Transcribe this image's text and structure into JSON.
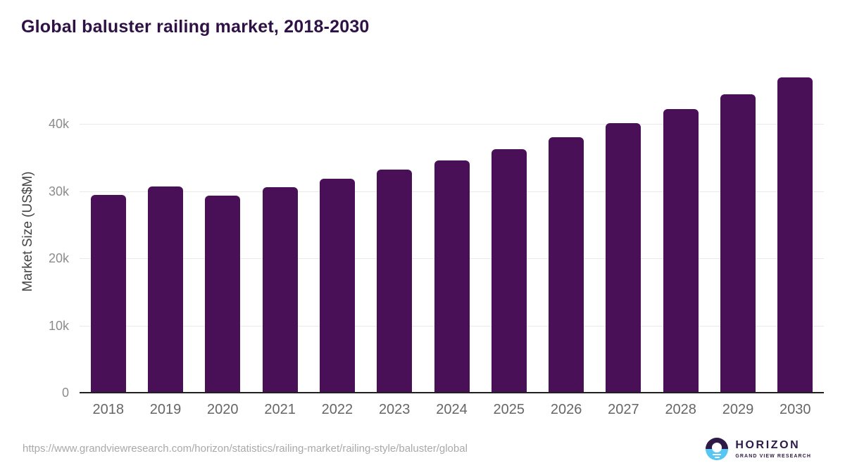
{
  "title": "Global baluster railing market, 2018-2030",
  "chart_data": {
    "type": "bar",
    "title": "Global baluster railing market, 2018-2030",
    "categories": [
      "2018",
      "2019",
      "2020",
      "2021",
      "2022",
      "2023",
      "2024",
      "2025",
      "2026",
      "2027",
      "2028",
      "2029",
      "2030"
    ],
    "values": [
      29500,
      30700,
      29300,
      30600,
      31850,
      33250,
      34600,
      36300,
      38000,
      40100,
      42200,
      44400,
      47000
    ],
    "xlabel": "",
    "ylabel": "Market Size (US$M)",
    "ylim": [
      0,
      48000
    ],
    "yticks": [
      0,
      10000,
      20000,
      30000,
      40000
    ],
    "ytick_labels": [
      "0",
      "10k",
      "20k",
      "30k",
      "40k"
    ],
    "grid": true,
    "legend": false,
    "bar_color": "#4a1057"
  },
  "footer": {
    "source_url": "https://www.grandviewresearch.com/horizon/statistics/railing-market/railing-style/baluster/global",
    "logo": {
      "name": "HORIZON",
      "tagline": "GRAND VIEW RESEARCH",
      "mark": "sunset-circle-icon"
    }
  },
  "colors": {
    "title": "#2f1245",
    "bar": "#4a1057",
    "gridline": "#e9e9e9",
    "axis_line": "#212121",
    "y_tick_text": "#8c8c8c",
    "x_tick_text": "#666666",
    "y_axis_title_text": "#444444",
    "url_text": "#a9a9a9",
    "logo_purple": "#2d1a47",
    "logo_blue": "#58c6f3"
  }
}
